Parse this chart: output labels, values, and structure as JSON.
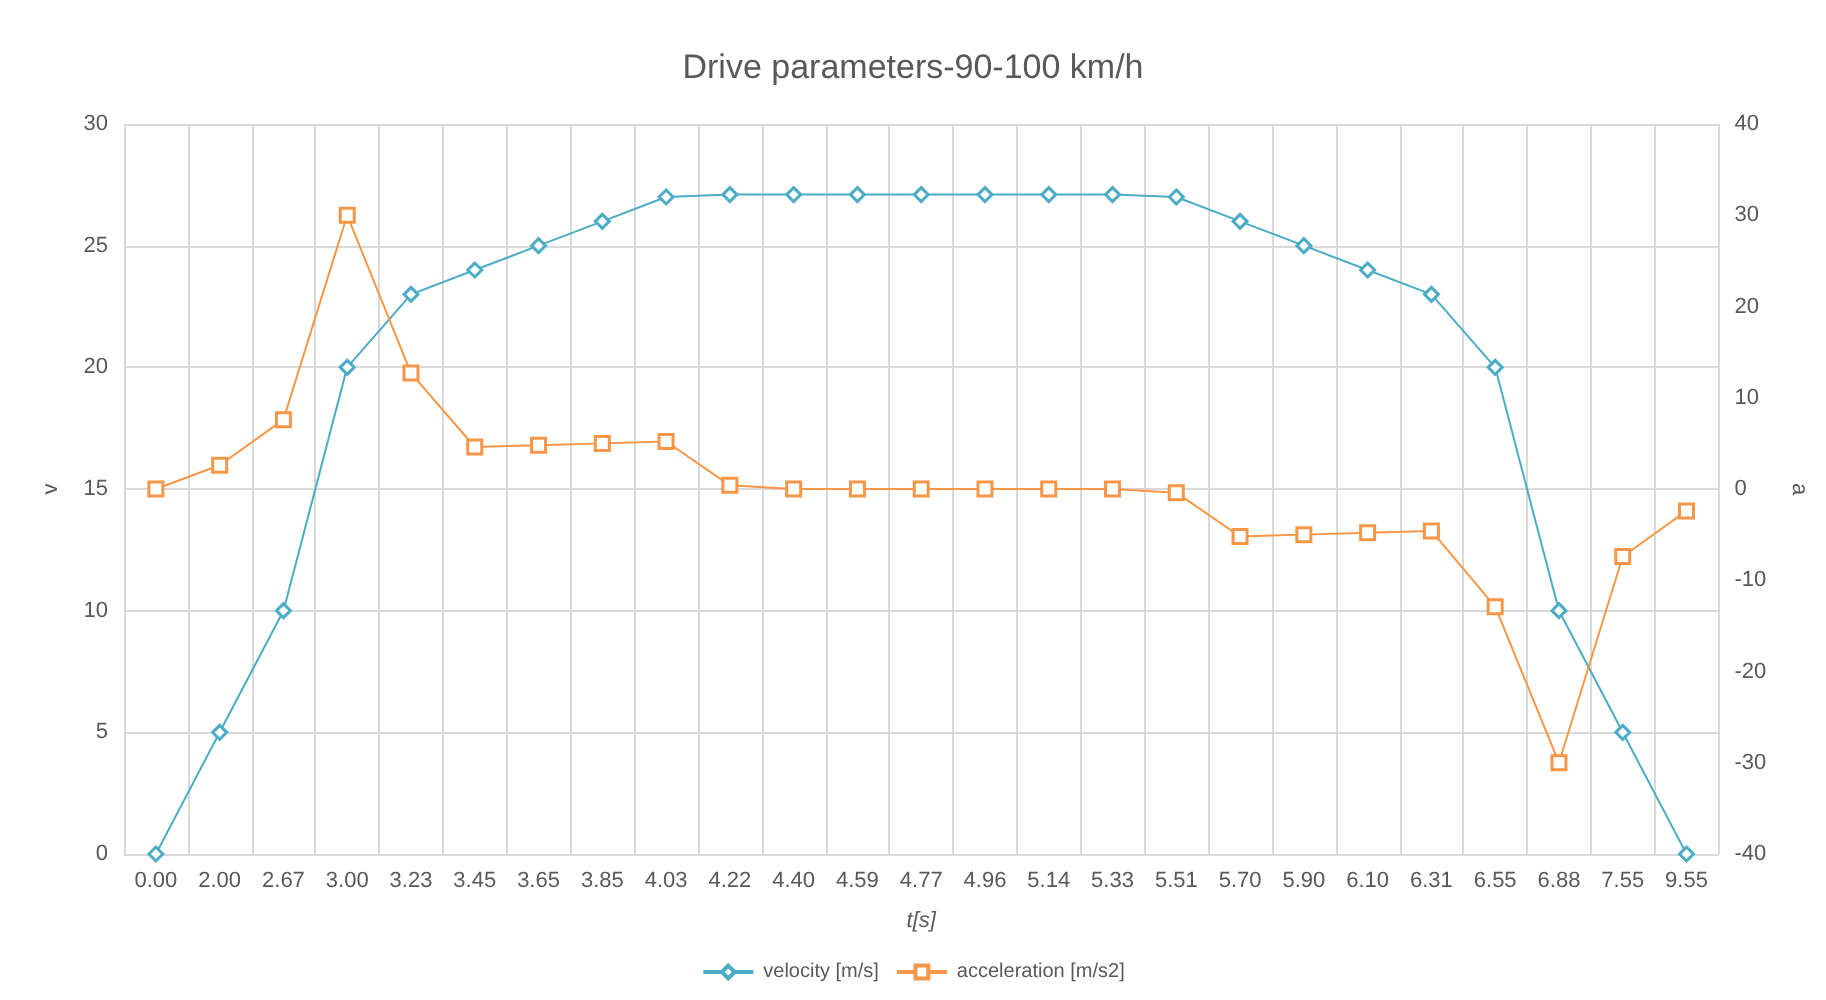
{
  "chart_data": {
    "type": "line",
    "title": "Drive parameters-90-100 km/h",
    "xlabel": "t[s]",
    "ylabel": "v",
    "y2label": "a",
    "categories": [
      "0.00",
      "2.00",
      "2.67",
      "3.00",
      "3.23",
      "3.45",
      "3.65",
      "3.85",
      "4.03",
      "4.22",
      "4.40",
      "4.59",
      "4.77",
      "4.96",
      "5.14",
      "5.33",
      "5.51",
      "5.70",
      "5.90",
      "6.10",
      "6.31",
      "6.55",
      "6.88",
      "7.55",
      "9.55"
    ],
    "series": [
      {
        "name": "velocity [m/s]",
        "color": "#4bacc6",
        "marker": "diamond",
        "values": [
          0,
          5,
          10,
          20,
          23,
          24,
          25,
          26,
          27,
          27.1,
          27.1,
          27.1,
          27.1,
          27.1,
          27.1,
          27.1,
          27,
          26,
          25,
          24,
          23,
          20,
          10,
          5,
          0
        ]
      },
      {
        "name": "acceleration [m/s2]",
        "color": "#f79646",
        "marker": "square",
        "axis": "y2",
        "values": [
          0,
          2.6,
          7.6,
          30,
          12.7,
          4.6,
          4.8,
          5,
          5.2,
          0.4,
          0,
          0,
          0,
          0,
          0,
          0,
          -0.4,
          -5.2,
          -5,
          -4.8,
          -4.6,
          -12.9,
          -30,
          -7.4,
          -2.4
        ]
      }
    ],
    "ylim": [
      0,
      30
    ],
    "yticks": [
      0,
      5,
      10,
      15,
      20,
      25,
      30
    ],
    "y2lim": [
      -40,
      40
    ],
    "y2ticks": [
      -40,
      -30,
      -20,
      -10,
      0,
      10,
      20,
      30,
      40
    ],
    "grid": true,
    "legend": "bottom",
    "line_style": "solid"
  }
}
